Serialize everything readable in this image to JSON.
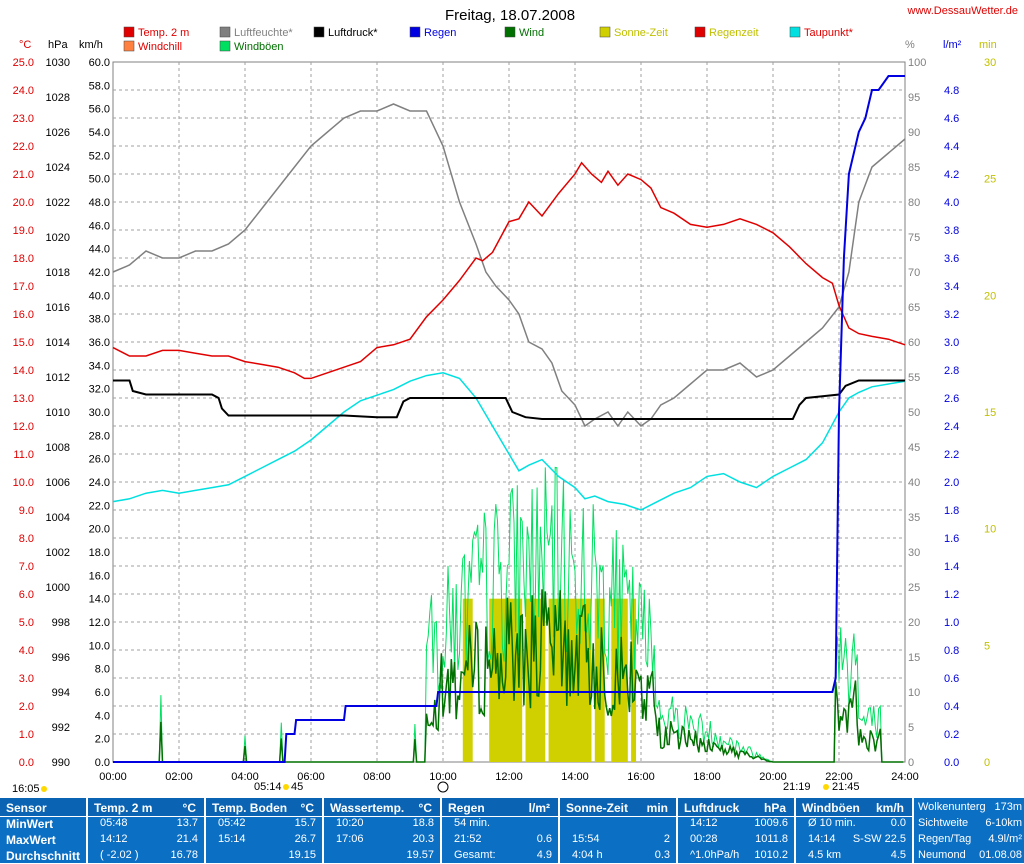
{
  "header": {
    "title": "Freitag, 18.07.2008",
    "site": "www.DessauWetter.de"
  },
  "legend": [
    {
      "label": "Temp. 2 m",
      "color": "#e00000",
      "text_color": "#e00000"
    },
    {
      "label": "Luftfeuchte*",
      "color": "#808080",
      "text_color": "#808080"
    },
    {
      "label": "Luftdruck*",
      "color": "#000000",
      "text_color": "#000000"
    },
    {
      "label": "Regen",
      "color": "#0000e0",
      "text_color": "#0000e0"
    },
    {
      "label": "Wind",
      "color": "#007000",
      "text_color": "#007000"
    },
    {
      "label": "Sonne-Zeit",
      "color": "#d0d000",
      "text_color": "#c0c000"
    },
    {
      "label": "Regenzeit",
      "color": "#e00000",
      "text_color": "#c0c000"
    },
    {
      "label": "Taupunkt*",
      "color": "#00e0e0",
      "text_color": "#e00000"
    },
    {
      "label": "Windchill",
      "color": "#ff8040",
      "text_color": "#e00000"
    },
    {
      "label": "Windböen",
      "color": "#00e060",
      "text_color": "#007000"
    }
  ],
  "axes": {
    "unit_c": "°C",
    "unit_hpa": "hPa",
    "unit_kmh": "km/h",
    "unit_pct": "%",
    "unit_lm2": "l/m²",
    "unit_min": "min",
    "temp_ticks": [
      "25.0",
      "24.0",
      "23.0",
      "22.0",
      "21.0",
      "20.0",
      "19.0",
      "18.0",
      "17.0",
      "16.0",
      "15.0",
      "14.0",
      "13.0",
      "12.0",
      "11.0",
      "10.0",
      "9.0",
      "8.0",
      "7.0",
      "6.0",
      "5.0",
      "4.0",
      "3.0",
      "2.0",
      "1.0",
      "0.0"
    ],
    "hpa_ticks": [
      "1030",
      "1028",
      "1026",
      "1024",
      "1022",
      "1020",
      "1018",
      "1016",
      "1014",
      "1012",
      "1010",
      "1008",
      "1006",
      "1004",
      "1002",
      "1000",
      "998",
      "996",
      "994",
      "992",
      "990"
    ],
    "kmh_ticks": [
      "60.0",
      "58.0",
      "56.0",
      "54.0",
      "52.0",
      "50.0",
      "48.0",
      "46.0",
      "44.0",
      "42.0",
      "40.0",
      "38.0",
      "36.0",
      "34.0",
      "32.0",
      "30.0",
      "28.0",
      "26.0",
      "24.0",
      "22.0",
      "20.0",
      "18.0",
      "16.0",
      "14.0",
      "12.0",
      "10.0",
      "8.0",
      "6.0",
      "4.0",
      "2.0",
      "0.0"
    ],
    "pct_ticks": [
      "100",
      "95",
      "90",
      "85",
      "80",
      "75",
      "70",
      "65",
      "60",
      "55",
      "50",
      "45",
      "40",
      "35",
      "30",
      "25",
      "20",
      "15",
      "10",
      "5",
      "0"
    ],
    "rain_ticks": [
      "4.8",
      "4.6",
      "4.4",
      "4.2",
      "4.0",
      "3.8",
      "3.6",
      "3.4",
      "3.2",
      "3.0",
      "2.8",
      "2.6",
      "2.4",
      "2.2",
      "2.0",
      "1.8",
      "1.6",
      "1.4",
      "1.2",
      "1.0",
      "0.8",
      "0.6",
      "0.4",
      "0.2",
      "0.0"
    ],
    "min_ticks": [
      "30",
      "25",
      "20",
      "15",
      "10",
      "5",
      "0"
    ],
    "time_ticks": [
      "00:00",
      "02:00",
      "04:00",
      "06:00",
      "08:00",
      "10:00",
      "12:00",
      "14:00",
      "16:00",
      "18:00",
      "20:00",
      "22:00",
      "24:00"
    ]
  },
  "sun_times": {
    "moonset": "16:05",
    "sunrise": "05:14",
    "sunrise_min": "45",
    "sunset": "21:19",
    "sunset_min": "21:45"
  },
  "chart_data": {
    "type": "line",
    "title": "Freitag, 18.07.2008",
    "x_unit": "hours",
    "xlim": [
      0,
      24
    ],
    "series": [
      {
        "name": "Temp. 2 m",
        "unit": "°C",
        "ylim": [
          0,
          25
        ],
        "x": [
          0,
          0.5,
          1,
          1.5,
          2,
          2.5,
          3,
          3.5,
          4,
          4.5,
          5,
          5.5,
          5.8,
          6,
          6.5,
          7,
          7.5,
          8,
          8.5,
          9,
          9.5,
          10,
          10.5,
          11,
          11.2,
          11.5,
          12,
          12.3,
          12.6,
          13,
          13.5,
          14,
          14.2,
          14.5,
          14.8,
          15,
          15.3,
          15.6,
          16,
          16.3,
          16.6,
          17,
          17.5,
          18,
          18.5,
          19,
          19.5,
          20,
          20.5,
          21,
          21.5,
          21.8,
          22,
          22.3,
          22.6,
          23,
          23.5,
          24
        ],
        "y": [
          14.8,
          14.5,
          14.5,
          14.7,
          14.7,
          14.6,
          14.5,
          14.5,
          14.3,
          14.2,
          14.1,
          13.9,
          13.7,
          13.7,
          13.9,
          14.1,
          14.3,
          14.8,
          14.9,
          15.1,
          15.9,
          16.5,
          17.2,
          18.0,
          17.9,
          18.2,
          19.3,
          19.4,
          20.0,
          19.5,
          20.3,
          21.0,
          21.4,
          21.0,
          20.7,
          21.1,
          20.6,
          21.0,
          20.8,
          20.5,
          19.8,
          19.6,
          19.2,
          19.1,
          19.2,
          19.4,
          19.2,
          18.9,
          18.4,
          17.8,
          17.3,
          17.1,
          16.3,
          15.5,
          15.3,
          15.2,
          15.1,
          14.9
        ]
      },
      {
        "name": "Luftfeuchte*",
        "unit": "%",
        "ylim": [
          0,
          100
        ],
        "x": [
          0,
          0.5,
          1,
          1.5,
          2,
          2.5,
          3,
          3.5,
          4,
          4.5,
          5,
          5.5,
          6,
          6.5,
          7,
          7.5,
          8,
          8.5,
          9,
          9.5,
          10,
          10.5,
          11,
          11.3,
          11.6,
          12,
          12.3,
          12.6,
          13,
          13.3,
          13.6,
          14,
          14.3,
          14.6,
          15,
          15.3,
          15.6,
          16,
          16.3,
          16.6,
          17,
          17.5,
          18,
          18.5,
          19,
          19.5,
          20,
          20.5,
          21,
          21.5,
          22,
          22.3,
          22.6,
          23,
          23.5,
          24
        ],
        "y": [
          70,
          71,
          73,
          72,
          72,
          73,
          73,
          74,
          76,
          79,
          82,
          85,
          88,
          90,
          92,
          93,
          93,
          94,
          93,
          93,
          88,
          80,
          74,
          70,
          68,
          66,
          64,
          60,
          59,
          57,
          53,
          51,
          48,
          49,
          50,
          48,
          50,
          48,
          49,
          51,
          52,
          54,
          56,
          56,
          57,
          55,
          56,
          58,
          60,
          62,
          65,
          70,
          80,
          85,
          87,
          89
        ]
      },
      {
        "name": "Luftdruck*",
        "unit": "hPa",
        "ylim": [
          990,
          1030
        ],
        "x": [
          0,
          0.5,
          0.6,
          1,
          1.5,
          2,
          2.5,
          3,
          3.2,
          3.3,
          3.5,
          4,
          5,
          6,
          7,
          8,
          8.6,
          8.8,
          9,
          9.5,
          10,
          11,
          11.9,
          12.1,
          12.5,
          13,
          14,
          15,
          16,
          17,
          18,
          19,
          20,
          20.6,
          20.8,
          21,
          21.5,
          22,
          22.2,
          22.6,
          23,
          23.5,
          24
        ],
        "y": [
          1011.8,
          1011.8,
          1011.2,
          1011.0,
          1011.0,
          1011.0,
          1011.0,
          1011.0,
          1010.8,
          1010.2,
          1009.8,
          1009.8,
          1009.8,
          1009.8,
          1009.8,
          1009.7,
          1009.7,
          1010.6,
          1010.8,
          1010.8,
          1010.8,
          1010.8,
          1010.8,
          1010.0,
          1009.7,
          1009.6,
          1009.6,
          1009.6,
          1009.6,
          1009.6,
          1009.6,
          1009.6,
          1009.6,
          1009.6,
          1010.4,
          1010.8,
          1010.9,
          1011.0,
          1011.5,
          1011.8,
          1011.8,
          1011.8,
          1011.8
        ]
      },
      {
        "name": "Regen",
        "unit": "l/m²",
        "ylim": [
          0,
          5
        ],
        "x": [
          0,
          5.2,
          5.25,
          5.5,
          5.55,
          7,
          7.05,
          9.8,
          9.85,
          10.2,
          10.25,
          21.8,
          21.9,
          22.0,
          22.15,
          22.3,
          22.5,
          22.6,
          22.8,
          23.0,
          23.2,
          23.5,
          24
        ],
        "y": [
          0,
          0,
          0.2,
          0.2,
          0.3,
          0.3,
          0.4,
          0.4,
          0.5,
          0.5,
          0.5,
          0.5,
          0.6,
          2.5,
          3.6,
          4.2,
          4.4,
          4.5,
          4.6,
          4.8,
          4.8,
          4.9,
          4.9
        ]
      },
      {
        "name": "Taupunkt*",
        "unit": "°C",
        "ylim": [
          0,
          25
        ],
        "x": [
          0,
          0.5,
          1,
          1.5,
          2,
          2.5,
          3,
          3.5,
          4,
          4.5,
          5,
          5.5,
          6,
          6.5,
          7,
          7.5,
          8,
          8.5,
          9,
          9.5,
          10,
          10.5,
          11,
          11.5,
          12,
          12.3,
          12.6,
          13,
          13.5,
          14,
          14.3,
          14.6,
          15,
          15.5,
          16,
          16.5,
          17,
          17.5,
          18,
          18.5,
          19,
          19.5,
          20,
          20.5,
          21,
          21.5,
          22,
          22.3,
          22.6,
          23,
          23.5,
          24
        ],
        "y": [
          9.3,
          9.4,
          9.6,
          9.7,
          9.6,
          9.7,
          9.8,
          9.9,
          10.2,
          10.5,
          10.8,
          11.1,
          11.5,
          12.0,
          12.5,
          12.9,
          13.1,
          13.3,
          13.6,
          13.8,
          13.9,
          13.7,
          13.0,
          12.0,
          11.0,
          10.4,
          10.6,
          10.8,
          10.2,
          9.8,
          9.4,
          9.5,
          9.3,
          9.2,
          9.0,
          9.3,
          9.6,
          9.8,
          10.2,
          10.3,
          10.0,
          9.8,
          10.2,
          10.5,
          10.8,
          11.4,
          12.5,
          13.0,
          13.2,
          13.4,
          13.5,
          13.6
        ]
      }
    ],
    "wind_max_kmh": 35,
    "sunshine_bars": [
      {
        "start": 10.6,
        "end": 10.9,
        "minutes": 7
      },
      {
        "start": 11.4,
        "end": 12.4,
        "minutes": 7
      },
      {
        "start": 12.5,
        "end": 13.1,
        "minutes": 7
      },
      {
        "start": 13.2,
        "end": 14.5,
        "minutes": 7
      },
      {
        "start": 14.6,
        "end": 14.9,
        "minutes": 7
      },
      {
        "start": 15.1,
        "end": 15.6,
        "minutes": 7
      },
      {
        "start": 15.7,
        "end": 15.85,
        "minutes": 7
      }
    ]
  },
  "stats": {
    "row_labels": [
      "Sensor",
      "MinWert",
      "MaxWert",
      "Durchschnitt"
    ],
    "columns": [
      {
        "title": "Temp. 2 m",
        "unit": "°C",
        "min_time": "05:48",
        "min_val": "13.7",
        "max_time": "14:12",
        "max_val": "21.4",
        "avg_pre": "( -2.02 )",
        "avg_val": "16.78"
      },
      {
        "title": "Temp. Boden",
        "unit": "°C",
        "min_time": "05:42",
        "min_val": "15.7",
        "max_time": "15:14",
        "max_val": "26.7",
        "avg_pre": "",
        "avg_val": "19.15"
      },
      {
        "title": "Wassertemp.",
        "unit": "°C",
        "min_time": "10:20",
        "min_val": "18.8",
        "max_time": "17:06",
        "max_val": "20.3",
        "avg_pre": "",
        "avg_val": "19.57"
      },
      {
        "title": "Regen",
        "unit": "l/m²",
        "min_time": "54 min.",
        "min_val": "",
        "max_time": "21:52",
        "max_val": "0.6",
        "avg_pre": "Gesamt:",
        "avg_val": "4.9"
      },
      {
        "title": "Sonne-Zeit",
        "unit": "min",
        "min_time": "",
        "min_val": "",
        "max_time": "15:54",
        "max_val": "2",
        "avg_pre": "4:04 h",
        "avg_val": "0.3"
      },
      {
        "title": "Luftdruck",
        "unit": "hPa",
        "min_time": "14:12",
        "min_val": "1009.6",
        "max_time": "00:28",
        "max_val": "1011.8",
        "avg_pre": "^1.0hPa/h",
        "avg_val": "1010.2"
      },
      {
        "title": "Windböen",
        "unit": "km/h",
        "min_time": "Ø 10 min.",
        "min_val": "0.0",
        "max_time": "14:14",
        "max_val": "S-SW 22.5",
        "avg_pre": "4.5 km",
        "avg_val": "4.5"
      }
    ],
    "extra": [
      {
        "label": "Wolkenunterg",
        "value": "173m"
      },
      {
        "label": "Sichtweite",
        "value": "6-10km"
      },
      {
        "label": "Regen/Tag",
        "value": "4.9l/m²"
      },
      {
        "label": "Neumond",
        "value": "01.08.08"
      }
    ]
  }
}
